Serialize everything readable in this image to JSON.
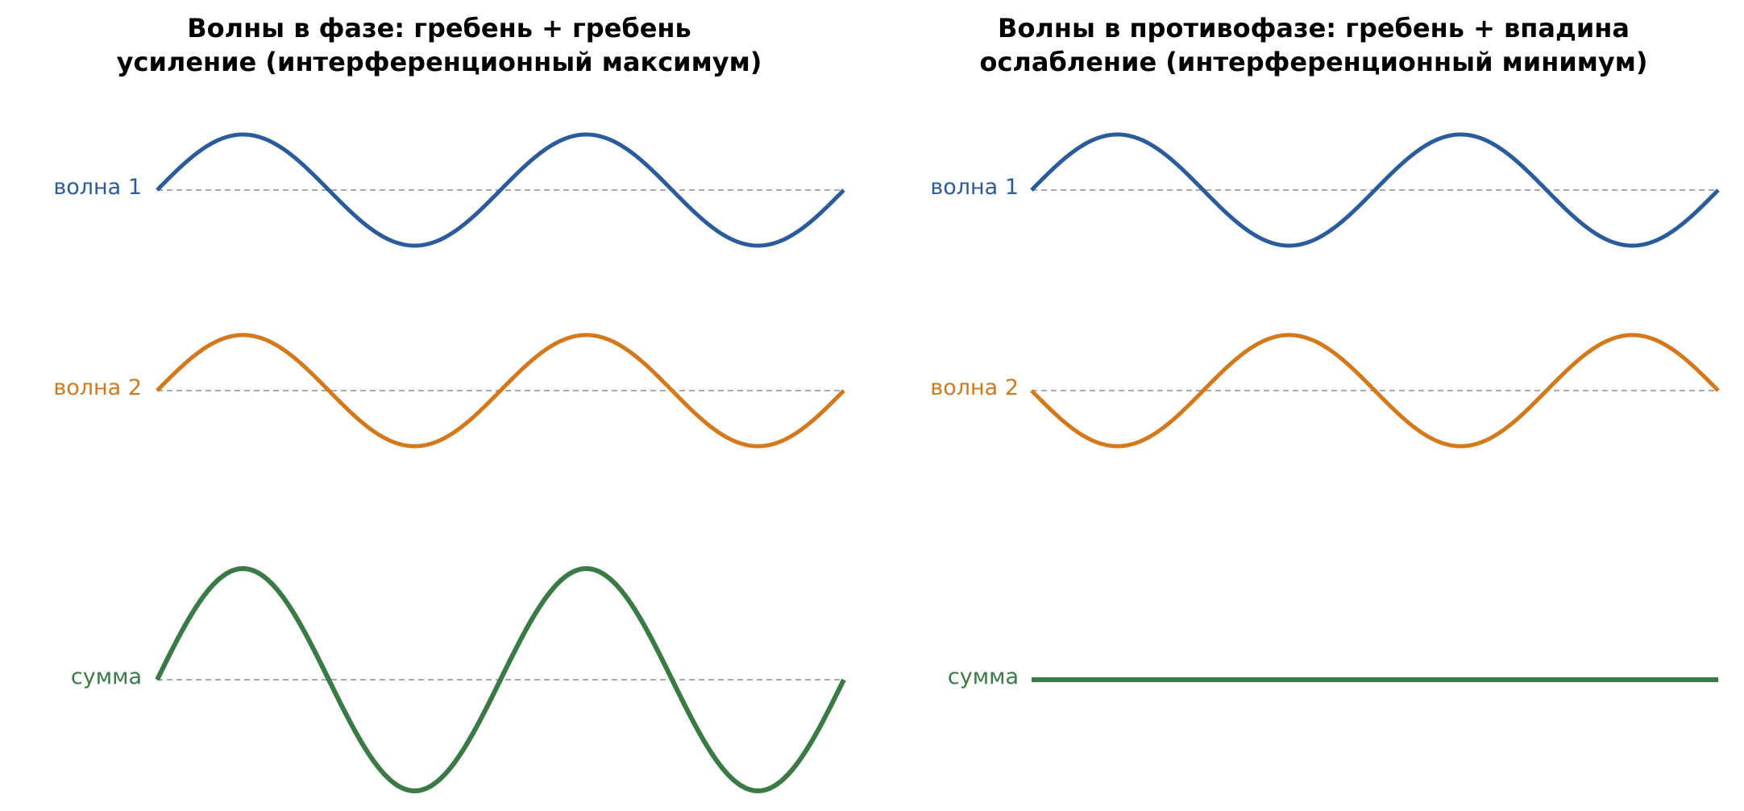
{
  "colors": {
    "wave1": "#2a5b9c",
    "wave2": "#d4781a",
    "sum": "#3a7a45",
    "baseline": "#aaaaaa",
    "title": "#000000"
  },
  "panels": [
    {
      "id": "in-phase",
      "title_line1": "Волны в фазе: гребень + гребень",
      "title_line2": "усиление (интерференционный максимум)",
      "rows": [
        {
          "label": "волна 1",
          "role": "wave1",
          "amplitude": 1,
          "phase": "crest"
        },
        {
          "label": "волна 2",
          "role": "wave2",
          "amplitude": 1,
          "phase": "crest"
        },
        {
          "label": "сумма",
          "role": "sum",
          "amplitude": 2,
          "phase": "crest",
          "baseline": true
        }
      ],
      "periods": 2
    },
    {
      "id": "anti-phase",
      "title_line1": "Волны в противофазе: гребень + впадина",
      "title_line2": "ослабление (интерференционный минимум)",
      "rows": [
        {
          "label": "волна 1",
          "role": "wave1",
          "amplitude": 1,
          "phase": "crest"
        },
        {
          "label": "волна 2",
          "role": "wave2",
          "amplitude": 1,
          "phase": "trough"
        },
        {
          "label": "сумма",
          "role": "sum",
          "amplitude": 0,
          "phase": "flat",
          "baseline": false
        }
      ],
      "periods": 2
    }
  ]
}
